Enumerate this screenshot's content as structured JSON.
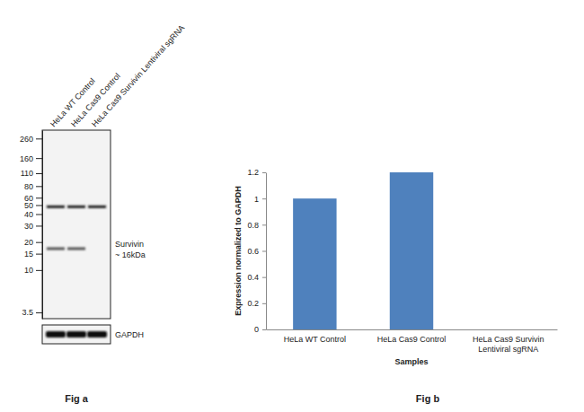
{
  "chart_data": [
    {
      "type": "blot",
      "title": "Fig a",
      "categories": [
        "HeLa WT Control",
        "HeLa Cas9 Control",
        "HeLa Cas9 Survivin Lentiviral sgRNA"
      ],
      "log": "y",
      "ylim": [
        3,
        320
      ],
      "yticks": [
        260,
        160,
        110,
        80,
        60,
        50,
        40,
        30,
        20,
        15,
        10,
        3.5
      ],
      "series": [
        {
          "values": [
            48,
            48,
            48
          ]
        },
        {
          "name": "Survivin",
          "annotation": "~ 16kDa",
          "values": [
            17,
            17,
            null
          ]
        }
      ],
      "loading_control": "GAPDH"
    },
    {
      "type": "bar",
      "title": "Fig b",
      "categories": [
        "HeLa WT Control",
        "HeLa Cas9 Control",
        "HeLa Cas9 Survivin Lentiviral sgRNA"
      ],
      "values": [
        1,
        1.2,
        0
      ],
      "color": "#4f81bd",
      "ylim": [
        0,
        1.2
      ],
      "yticks": [
        0,
        0.2,
        0.4,
        0.6,
        0.8,
        1,
        1.2
      ],
      "x_label": "Samples",
      "y_label": "Expression  normalized to GAPDH",
      "grid": false
    }
  ]
}
